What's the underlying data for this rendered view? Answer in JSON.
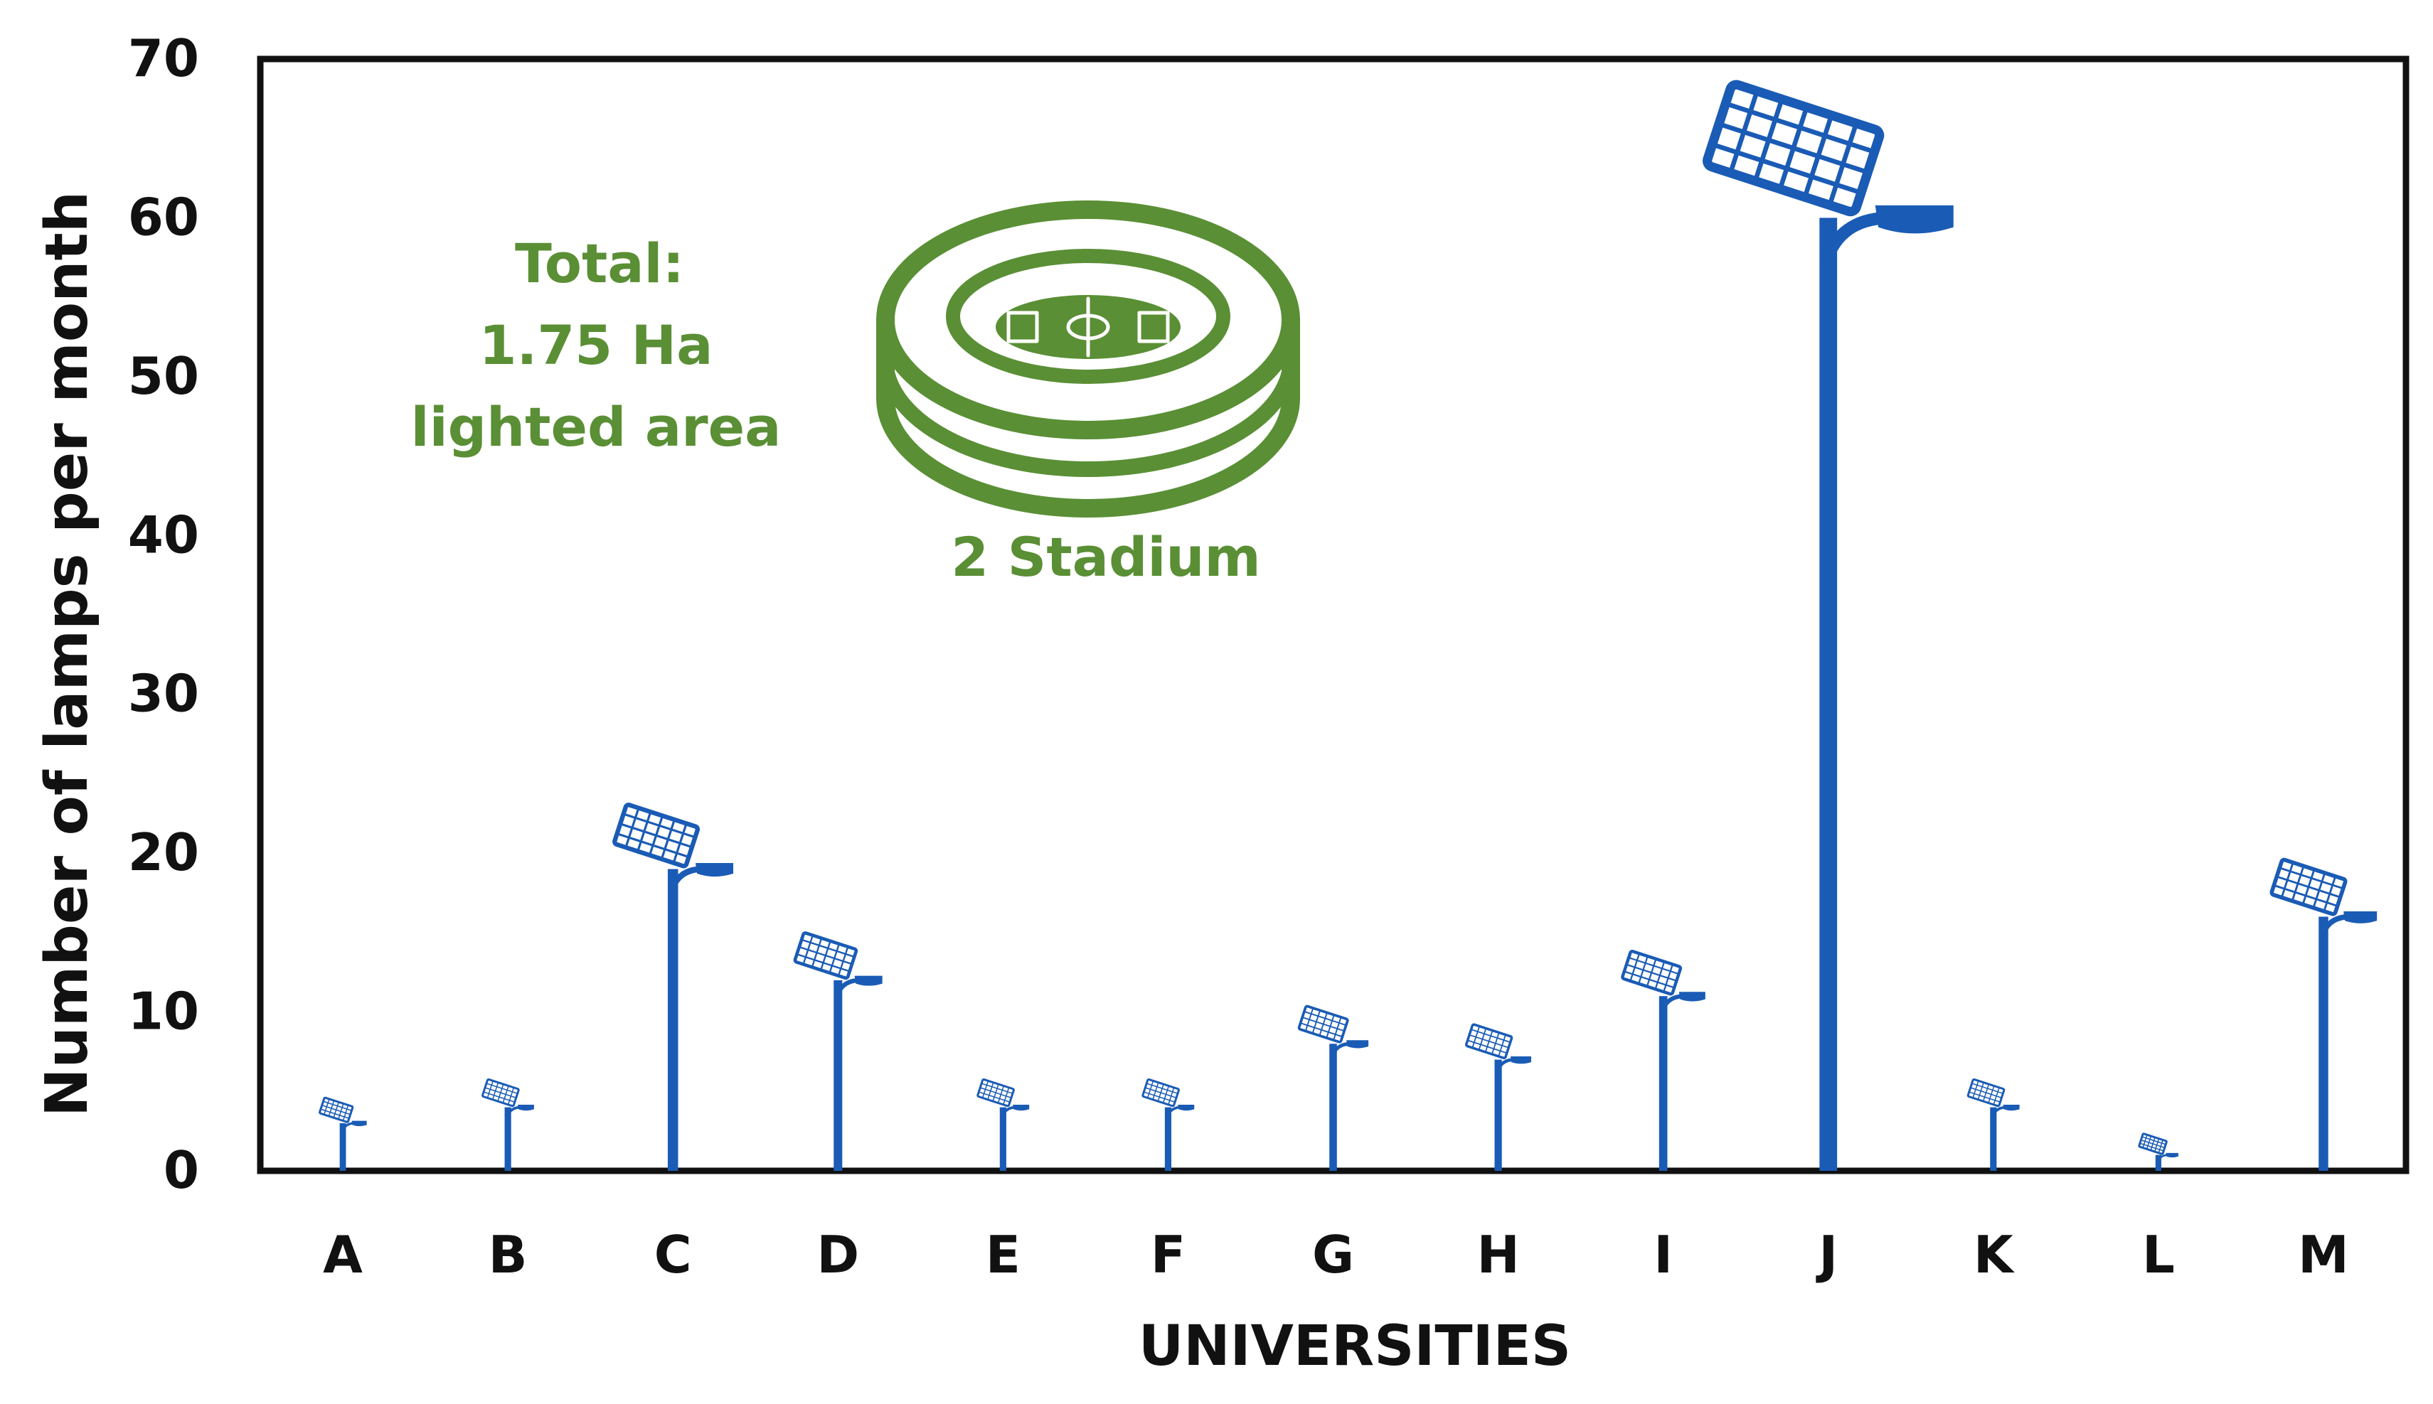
{
  "chart_data": {
    "type": "bar",
    "categories": [
      "A",
      "B",
      "C",
      "D",
      "E",
      "F",
      "G",
      "H",
      "I",
      "J",
      "K",
      "L",
      "M"
    ],
    "values": [
      3,
      4,
      19,
      12,
      4,
      4,
      8,
      7,
      11,
      60,
      4,
      1,
      16
    ],
    "xlabel": "UNIVERSITIES",
    "ylabel": "Number of lamps per month",
    "ylim": [
      0,
      70
    ],
    "yticks": [
      "0",
      "10",
      "20",
      "30",
      "40",
      "50",
      "60",
      "70"
    ],
    "marker": "solar-street-lamp-icon",
    "grid": false,
    "annotations": {
      "total_line1": "Total:",
      "total_line2": "1.75 Ha",
      "total_line3": "lighted area",
      "stadium_label": "2 Stadium",
      "stadium_icon": "stadium-icon"
    }
  },
  "colors": {
    "lamp": "#1a5bb5",
    "annotation": "#5a8f35",
    "axis": "#111111"
  }
}
